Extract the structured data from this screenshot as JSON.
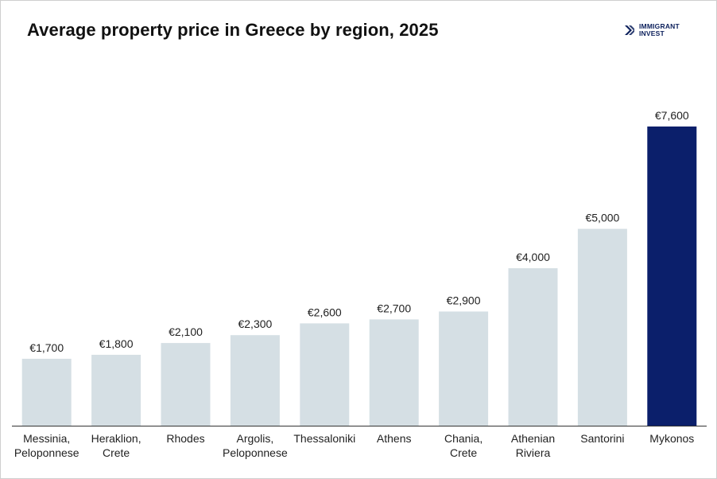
{
  "brand": {
    "line1": "IMMIGRANT",
    "line2": "INVEST",
    "color": "#0b1f5b"
  },
  "chart_data": {
    "type": "bar",
    "title": "Average property price in Greece by region, 2025",
    "categories": [
      [
        "Messinia,",
        "Peloponnese"
      ],
      [
        "Heraklion,",
        "Crete"
      ],
      [
        "Rhodes"
      ],
      [
        "Argolis,",
        "Peloponnese"
      ],
      [
        "Thessaloniki"
      ],
      [
        "Athens"
      ],
      [
        "Chania,",
        "Crete"
      ],
      [
        "Athenian",
        "Riviera"
      ],
      [
        "Santorini"
      ],
      [
        "Mykonos"
      ]
    ],
    "values": [
      1700,
      1800,
      2100,
      2300,
      2600,
      2700,
      2900,
      4000,
      5000,
      7600
    ],
    "value_labels": [
      "€1,700",
      "€1,800",
      "€2,100",
      "€2,300",
      "€2,600",
      "€2,700",
      "€2,900",
      "€4,000",
      "€5,000",
      "€7,600"
    ],
    "ylim": [
      0,
      7600
    ],
    "colors": {
      "default": "#d5dfe4",
      "highlight": "#0b1f6b",
      "axis": "#333333"
    },
    "highlight_index": 9,
    "grid": false,
    "xlabel": "",
    "ylabel": ""
  }
}
